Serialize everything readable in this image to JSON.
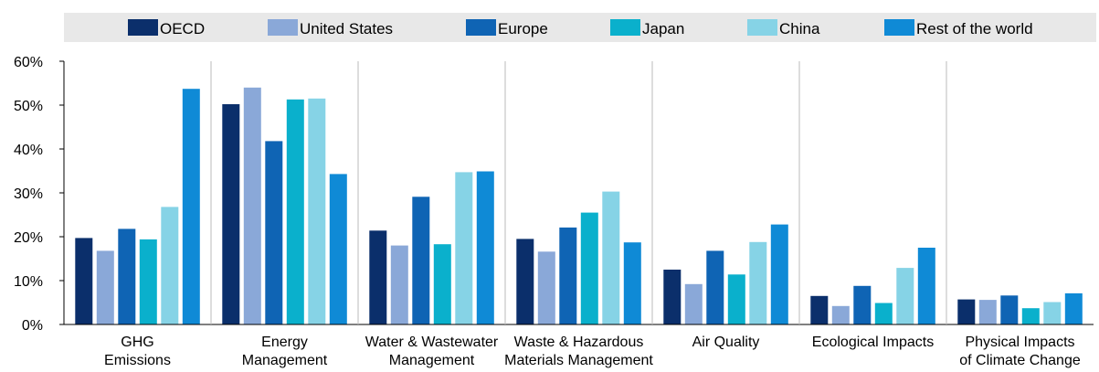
{
  "chart_data": {
    "type": "bar",
    "title": "",
    "xlabel": "",
    "ylabel": "",
    "ylim": [
      0,
      60
    ],
    "y_ticks": [
      "0%",
      "10%",
      "20%",
      "30%",
      "40%",
      "50%",
      "60%"
    ],
    "y_tick_values": [
      0,
      10,
      20,
      30,
      40,
      50,
      60
    ],
    "grid": false,
    "legend_placement": "top",
    "categories": [
      [
        "GHG",
        "Emissions"
      ],
      [
        "Energy",
        "Management"
      ],
      [
        "Water & Wastewater",
        "Management"
      ],
      [
        "Waste & Hazardous",
        "Materials Management"
      ],
      [
        "Air Quality"
      ],
      [
        "Ecological Impacts"
      ],
      [
        "Physical Impacts",
        "of Climate Change"
      ]
    ],
    "series": [
      {
        "name": "OECD",
        "color": "#0b2f6b",
        "values": [
          19.7,
          50.2,
          21.4,
          19.5,
          12.5,
          6.5,
          5.7
        ]
      },
      {
        "name": "United States",
        "color": "#8aa8d8",
        "values": [
          16.8,
          54.0,
          18.0,
          16.6,
          9.2,
          4.2,
          5.6
        ]
      },
      {
        "name": "Europe",
        "color": "#0f64b4",
        "values": [
          21.8,
          41.8,
          29.1,
          22.1,
          16.8,
          8.8,
          6.6
        ]
      },
      {
        "name": "Japan",
        "color": "#0ab0cc",
        "values": [
          19.4,
          51.3,
          18.3,
          25.5,
          11.4,
          4.9,
          3.7
        ]
      },
      {
        "name": "China",
        "color": "#86d3e6",
        "values": [
          26.8,
          51.5,
          34.7,
          30.3,
          18.8,
          12.9,
          5.1
        ]
      },
      {
        "name": "Rest of the world",
        "color": "#0f8ad6",
        "values": [
          53.7,
          34.3,
          34.9,
          18.7,
          22.8,
          17.5,
          7.1
        ]
      }
    ]
  }
}
